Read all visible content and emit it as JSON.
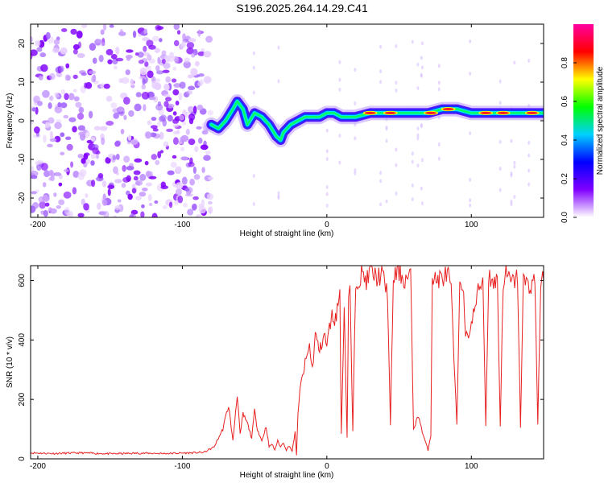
{
  "figure_title": "S196.2025.264.14.29.C41",
  "chart_data": [
    {
      "type": "heatmap",
      "name": "spectrogram",
      "title": "",
      "xlabel": "Height of straight line (km)",
      "ylabel": "Frequency (Hz)",
      "xlim": [
        -205,
        150
      ],
      "ylim": [
        -25,
        25
      ],
      "xticks": [
        -200,
        -100,
        0,
        100
      ],
      "yticks": [
        -20,
        -10,
        0,
        10,
        20
      ],
      "colorbar": {
        "label": "Normalized spectral amplitude",
        "range": [
          0,
          1
        ],
        "ticks": [
          0.0,
          0.2,
          0.4,
          0.6,
          0.8
        ],
        "colors": [
          "#ffffff",
          "#8000ff",
          "#0000ff",
          "#00d0ff",
          "#00ff00",
          "#ffff00",
          "#ff0000",
          "#ff00a0"
        ]
      },
      "noise_region_end_km": -80,
      "ridge": {
        "x": [
          -80,
          -75,
          -70,
          -65,
          -62,
          -58,
          -55,
          -50,
          -45,
          -40,
          -35,
          -32,
          -30,
          -25,
          -20,
          -15,
          -10,
          -5,
          0,
          5,
          10,
          20,
          30,
          40,
          50,
          60,
          70,
          80,
          85,
          90,
          100,
          110,
          120,
          130,
          140,
          150
        ],
        "y": [
          -1,
          -2,
          0,
          3,
          5,
          3,
          -1,
          2,
          1,
          -1,
          -4,
          -5,
          -3,
          -1,
          0,
          1,
          1,
          1,
          2,
          2,
          1,
          1,
          2,
          2,
          2,
          2,
          2,
          3,
          3,
          3,
          2,
          2,
          2,
          2,
          2,
          2
        ]
      }
    },
    {
      "type": "line",
      "name": "snr",
      "title": "",
      "xlabel": "Height of straight line (km)",
      "ylabel": "SNR (10 * v/v)",
      "xlim": [
        -205,
        150
      ],
      "ylim": [
        0,
        650
      ],
      "xticks": [
        -200,
        -100,
        0,
        100
      ],
      "yticks": [
        0,
        200,
        400,
        600
      ],
      "color": "#e82020",
      "series": [
        {
          "name": "SNR",
          "x": [
            -205,
            -190,
            -170,
            -150,
            -130,
            -110,
            -95,
            -85,
            -78,
            -72,
            -68,
            -65,
            -62,
            -60,
            -58,
            -55,
            -52,
            -50,
            -48,
            -45,
            -42,
            -40,
            -38,
            -36,
            -34,
            -32,
            -30,
            -28,
            -26,
            -24,
            -22,
            -21,
            -20,
            -18,
            -15,
            -12,
            -10,
            -8,
            -5,
            -2,
            0,
            3,
            6,
            9,
            10,
            12,
            14,
            15,
            16,
            18,
            20,
            24,
            28,
            30,
            34,
            38,
            42,
            44,
            46,
            50,
            54,
            58,
            60,
            62,
            64,
            66,
            70,
            72,
            73,
            75,
            80,
            84,
            86,
            90,
            92,
            94,
            96,
            100,
            104,
            108,
            110,
            112,
            116,
            118,
            120,
            122,
            124,
            128,
            132,
            134,
            136,
            140,
            144,
            146,
            148,
            150
          ],
          "y": [
            20,
            18,
            20,
            17,
            19,
            18,
            20,
            22,
            40,
            100,
            180,
            60,
            220,
            80,
            150,
            120,
            70,
            160,
            100,
            60,
            110,
            40,
            50,
            30,
            60,
            40,
            55,
            30,
            45,
            25,
            90,
            10,
            160,
            250,
            320,
            380,
            300,
            420,
            360,
            420,
            380,
            480,
            470,
            560,
            80,
            520,
            70,
            550,
            560,
            90,
            600,
            620,
            600,
            630,
            610,
            620,
            560,
            110,
            610,
            630,
            600,
            620,
            100,
            130,
            140,
            90,
            30,
            80,
            620,
            600,
            610,
            620,
            560,
            110,
            610,
            600,
            400,
            450,
            550,
            610,
            110,
            620,
            590,
            610,
            110,
            600,
            620,
            590,
            610,
            110,
            600,
            580,
            600,
            120,
            590,
            600
          ]
        }
      ]
    }
  ]
}
